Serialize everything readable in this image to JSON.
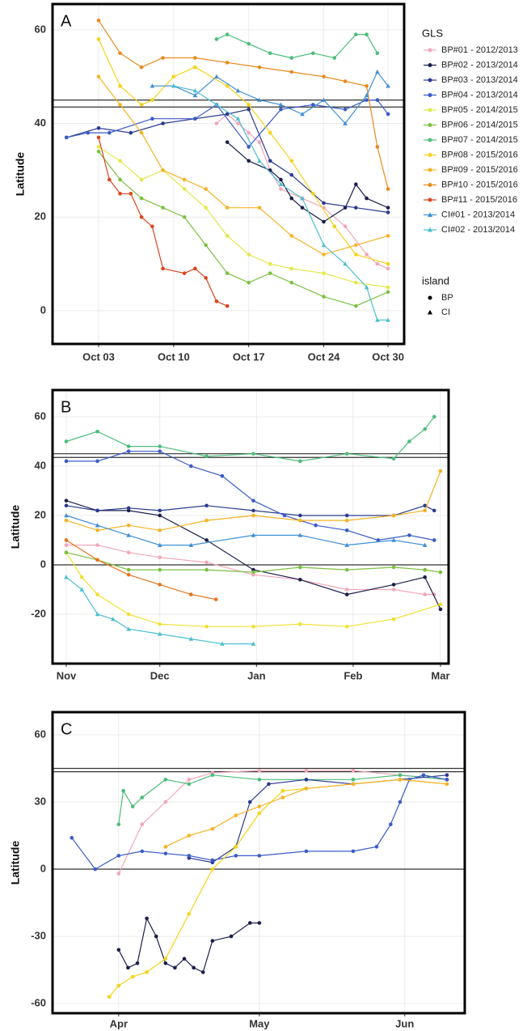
{
  "chart_data": [
    {
      "type": "line",
      "label": "A",
      "ylabel": "Latitude",
      "legend_title": "GLS",
      "xlim": [
        -1.3,
        31.5
      ],
      "ylim": [
        -7.1,
        65.5
      ],
      "xticks": [
        {
          "value": 3,
          "label": "Oct 03"
        },
        {
          "value": 10,
          "label": "Oct 10"
        },
        {
          "value": 17,
          "label": "Oct 17"
        },
        {
          "value": 24,
          "label": "Oct 24"
        },
        {
          "value": 30,
          "label": "Oct 30"
        }
      ],
      "yticks": [
        0,
        20,
        40,
        60
      ],
      "grid": true,
      "hlines": [
        45,
        43.5
      ],
      "island_legend": {
        "title": "island",
        "entries": [
          {
            "label": "BP",
            "marker": "circle"
          },
          {
            "label": "CI",
            "marker": "triangle"
          }
        ]
      },
      "series": [
        {
          "name": "BP#01 - 2012/2013",
          "color": "#f2a7b9",
          "marker": "circle",
          "x": [
            14,
            15,
            16,
            17,
            18,
            19,
            20,
            22,
            24,
            26,
            28,
            29,
            30
          ],
          "values": [
            40,
            42,
            40,
            38,
            36,
            30,
            26,
            24,
            22,
            18,
            12,
            10,
            9
          ]
        },
        {
          "name": "BP#02 - 2013/2014",
          "color": "#1b1f4b",
          "marker": "circle",
          "x": [
            15,
            17,
            19,
            20,
            21,
            22,
            24,
            26,
            27,
            28,
            30
          ],
          "values": [
            36,
            32,
            30,
            28,
            24,
            22,
            19,
            22,
            27,
            24,
            22
          ]
        },
        {
          "name": "BP#03 - 2013/2014",
          "color": "#2b3a8f",
          "marker": "circle",
          "x": [
            0,
            3,
            6,
            9,
            12,
            15,
            17,
            19,
            21,
            24,
            27,
            30
          ],
          "values": [
            37,
            39,
            38,
            40,
            41,
            42,
            43,
            32,
            29,
            23,
            22,
            21
          ]
        },
        {
          "name": "BP#04 - 2013/2014",
          "color": "#3a5bc7",
          "marker": "circle",
          "x": [
            0,
            2,
            4,
            8,
            12,
            14,
            17,
            20,
            23,
            26,
            28,
            29,
            30
          ],
          "values": [
            37,
            38,
            38,
            41,
            41,
            44,
            35,
            43,
            44,
            43,
            45,
            45,
            42
          ]
        },
        {
          "name": "BP#05 - 2014/2015",
          "color": "#e3e84a",
          "marker": "circle",
          "x": [
            3,
            5,
            7,
            9,
            11,
            13,
            15,
            17,
            19,
            21,
            24,
            27,
            30
          ],
          "values": [
            35,
            32,
            28,
            30,
            26,
            22,
            16,
            12,
            10,
            9,
            8,
            6,
            5
          ]
        },
        {
          "name": "BP#06 - 2014/2015",
          "color": "#7cc142",
          "marker": "circle",
          "x": [
            3,
            5,
            7,
            9,
            11,
            13,
            15,
            17,
            19,
            21,
            24,
            27,
            30
          ],
          "values": [
            34,
            28,
            24,
            22,
            20,
            14,
            8,
            6,
            8,
            6,
            3,
            1,
            4
          ]
        },
        {
          "name": "BP#07 - 2014/2015",
          "color": "#4cbd7a",
          "marker": "circle",
          "x": [
            14,
            15,
            17,
            19,
            21,
            23,
            25,
            27,
            28,
            29
          ],
          "values": [
            58,
            59,
            57,
            55,
            54,
            55,
            54,
            59,
            59,
            55
          ]
        },
        {
          "name": "BP#08 - 2015/2016",
          "color": "#f5d21a",
          "marker": "circle",
          "x": [
            3,
            5,
            7,
            8,
            10,
            12,
            15,
            17,
            19,
            21,
            23,
            25,
            27,
            30
          ],
          "values": [
            58,
            48,
            44,
            45,
            50,
            52,
            48,
            44,
            38,
            32,
            25,
            18,
            12,
            10
          ]
        },
        {
          "name": "BP#09 - 2015/2016",
          "color": "#f5b324",
          "marker": "circle",
          "x": [
            3,
            5,
            7,
            9,
            11,
            13,
            15,
            18,
            21,
            24,
            27,
            30
          ],
          "values": [
            50,
            44,
            38,
            30,
            28,
            26,
            22,
            22,
            16,
            12,
            14,
            16
          ]
        },
        {
          "name": "BP#10 - 2015/2016",
          "color": "#e8891c",
          "marker": "circle",
          "x": [
            3,
            5,
            7,
            9,
            12,
            15,
            18,
            21,
            24,
            26,
            28,
            29,
            30
          ],
          "values": [
            62,
            55,
            52,
            54,
            54,
            53,
            52,
            51,
            50,
            49,
            48,
            35,
            26
          ]
        },
        {
          "name": "BP#11 - 2015/2016",
          "color": "#d9461e",
          "marker": "circle",
          "x": [
            3,
            4,
            5,
            6,
            7,
            8,
            9,
            11,
            12,
            13,
            14,
            15
          ],
          "values": [
            37,
            28,
            25,
            25,
            20,
            18,
            9,
            8,
            9,
            7,
            2,
            1
          ]
        },
        {
          "name": "CI#01 - 2013/2014",
          "color": "#3f8fd4",
          "marker": "triangle",
          "x": [
            8,
            10,
            12,
            14,
            16,
            18,
            20,
            22,
            24,
            26,
            28,
            29,
            30
          ],
          "values": [
            48,
            48,
            46,
            50,
            47,
            45,
            44,
            42,
            45,
            40,
            46,
            51,
            48
          ]
        },
        {
          "name": "CI#02 - 2013/2014",
          "color": "#4dbfcf",
          "marker": "triangle",
          "x": [
            10,
            12,
            14,
            16,
            18,
            20,
            22,
            24,
            26,
            28,
            29,
            30
          ],
          "values": [
            48,
            47,
            44,
            41,
            32,
            27,
            24,
            14,
            10,
            5,
            -2,
            -2
          ]
        }
      ]
    },
    {
      "type": "line",
      "label": "B",
      "ylabel": "Latitude",
      "xlim": [
        -4.4,
        122.6
      ],
      "ylim": [
        -40,
        70.8
      ],
      "xticks": [
        {
          "value": 0,
          "label": "Nov"
        },
        {
          "value": 30,
          "label": "Dec"
        },
        {
          "value": 61,
          "label": "Jan"
        },
        {
          "value": 92,
          "label": "Feb"
        },
        {
          "value": 120,
          "label": "Mar"
        }
      ],
      "yticks": [
        -20,
        0,
        20,
        40,
        60
      ],
      "grid": true,
      "hlines": [
        45,
        43.5,
        0
      ],
      "series": [
        {
          "color": "#f2a7b9",
          "marker": "circle",
          "x": [
            0,
            10,
            20,
            30,
            45,
            60,
            75,
            90,
            105,
            115,
            118
          ],
          "values": [
            8,
            8,
            5,
            3,
            1,
            -4,
            -6,
            -10,
            -10,
            -12,
            -12
          ]
        },
        {
          "color": "#1b1f4b",
          "marker": "circle",
          "x": [
            0,
            10,
            20,
            30,
            45,
            60,
            75,
            90,
            105,
            115,
            120
          ],
          "values": [
            26,
            22,
            22,
            20,
            10,
            -2,
            -6,
            -12,
            -8,
            -5,
            -18
          ]
        },
        {
          "color": "#2b3a8f",
          "marker": "circle",
          "x": [
            0,
            10,
            20,
            30,
            45,
            60,
            75,
            90,
            105,
            115,
            118
          ],
          "values": [
            24,
            22,
            23,
            22,
            24,
            22,
            20,
            20,
            20,
            24,
            22
          ]
        },
        {
          "color": "#3a5bc7",
          "marker": "circle",
          "x": [
            0,
            10,
            20,
            30,
            40,
            50,
            60,
            70,
            80,
            90,
            100,
            110,
            118
          ],
          "values": [
            42,
            42,
            46,
            46,
            40,
            36,
            26,
            20,
            16,
            14,
            10,
            12,
            10
          ]
        },
        {
          "color": "#f0e030",
          "marker": "circle",
          "x": [
            0,
            5,
            10,
            20,
            30,
            45,
            60,
            75,
            90,
            105,
            120
          ],
          "values": [
            5,
            -5,
            -12,
            -20,
            -24,
            -25,
            -25,
            -24,
            -25,
            -22,
            -16
          ]
        },
        {
          "color": "#7cc142",
          "marker": "circle",
          "x": [
            0,
            10,
            20,
            30,
            45,
            60,
            75,
            90,
            105,
            115,
            120
          ],
          "values": [
            5,
            2,
            -2,
            -2,
            -2,
            -3,
            -1,
            -2,
            -1,
            -2,
            -3
          ]
        },
        {
          "color": "#4cbd7a",
          "marker": "circle",
          "x": [
            0,
            10,
            20,
            30,
            45,
            60,
            75,
            90,
            105,
            110,
            115,
            118
          ],
          "values": [
            50,
            54,
            48,
            48,
            44,
            45,
            42,
            45,
            43,
            50,
            55,
            60
          ]
        },
        {
          "color": "#f5b324",
          "marker": "circle",
          "x": [
            0,
            10,
            20,
            30,
            45,
            60,
            75,
            90,
            105,
            115,
            120
          ],
          "values": [
            18,
            14,
            16,
            14,
            18,
            20,
            18,
            18,
            20,
            22,
            38
          ]
        },
        {
          "color": "#e8721c",
          "marker": "circle",
          "x": [
            0,
            10,
            20,
            30,
            40,
            48
          ],
          "values": [
            10,
            2,
            -4,
            -8,
            -12,
            -14
          ]
        },
        {
          "color": "#3f8fd4",
          "marker": "triangle",
          "x": [
            0,
            10,
            20,
            30,
            40,
            60,
            75,
            90,
            105,
            115
          ],
          "values": [
            20,
            16,
            12,
            8,
            8,
            12,
            12,
            8,
            10,
            8
          ]
        },
        {
          "color": "#4dbfcf",
          "marker": "triangle",
          "x": [
            0,
            5,
            10,
            15,
            20,
            30,
            40,
            50,
            60
          ],
          "values": [
            -5,
            -10,
            -20,
            -22,
            -26,
            -28,
            -30,
            -32,
            -32
          ]
        }
      ]
    },
    {
      "type": "line",
      "label": "C",
      "ylabel": "Latitude",
      "xlim": [
        -14.1,
        73.8
      ],
      "ylim": [
        -64.3,
        70.1
      ],
      "xticks": [
        {
          "value": 0,
          "label": "Apr"
        },
        {
          "value": 30,
          "label": "May"
        },
        {
          "value": 61,
          "label": "Jun"
        }
      ],
      "yticks": [
        -60,
        -30,
        0,
        30,
        60
      ],
      "grid": true,
      "hlines": [
        45,
        43.5,
        0
      ],
      "series": [
        {
          "color": "#f2a7b9",
          "marker": "circle",
          "x": [
            0,
            5,
            10,
            15,
            20,
            30,
            40,
            50,
            60,
            70
          ],
          "values": [
            -2,
            20,
            30,
            40,
            43,
            44,
            44,
            44,
            42,
            40
          ]
        },
        {
          "color": "#4cbd7a",
          "marker": "circle",
          "x": [
            0,
            1,
            3,
            5,
            10,
            15,
            20,
            30,
            40,
            50,
            60,
            70
          ],
          "values": [
            20,
            35,
            28,
            32,
            40,
            38,
            42,
            40,
            40,
            40,
            42,
            40
          ]
        },
        {
          "color": "#1b1f4b",
          "marker": "circle",
          "x": [
            0,
            2,
            4,
            6,
            8,
            10,
            12,
            14,
            16,
            18,
            20,
            24,
            28,
            30
          ],
          "values": [
            -36,
            -44,
            -42,
            -22,
            -30,
            -42,
            -44,
            -40,
            -44,
            -46,
            -32,
            -30,
            -24,
            -24
          ]
        },
        {
          "color": "#2b3a8f",
          "marker": "circle",
          "x": [
            15,
            20,
            25,
            28,
            32,
            40,
            50,
            60,
            70
          ],
          "values": [
            5,
            3,
            10,
            30,
            38,
            40,
            38,
            40,
            42
          ]
        },
        {
          "color": "#3a5bc7",
          "marker": "circle",
          "x": [
            -10,
            -5,
            0,
            5,
            10,
            15,
            20,
            25,
            30,
            40,
            50,
            55,
            58,
            60,
            62,
            65,
            70
          ],
          "values": [
            14,
            0,
            6,
            8,
            7,
            6,
            4,
            6,
            6,
            8,
            8,
            10,
            20,
            30,
            40,
            42,
            40
          ]
        },
        {
          "color": "#f5d21a",
          "marker": "circle",
          "x": [
            -2,
            0,
            3,
            6,
            10,
            15,
            20,
            25,
            30,
            35,
            40,
            50,
            60,
            70
          ],
          "values": [
            -57,
            -52,
            -48,
            -46,
            -40,
            -20,
            0,
            10,
            25,
            35,
            36,
            38,
            40,
            38
          ]
        },
        {
          "color": "#f5b324",
          "marker": "circle",
          "x": [
            10,
            15,
            20,
            25,
            30,
            35,
            40,
            50,
            60,
            70
          ],
          "values": [
            10,
            15,
            18,
            24,
            28,
            32,
            36,
            38,
            40,
            38
          ]
        }
      ]
    }
  ]
}
